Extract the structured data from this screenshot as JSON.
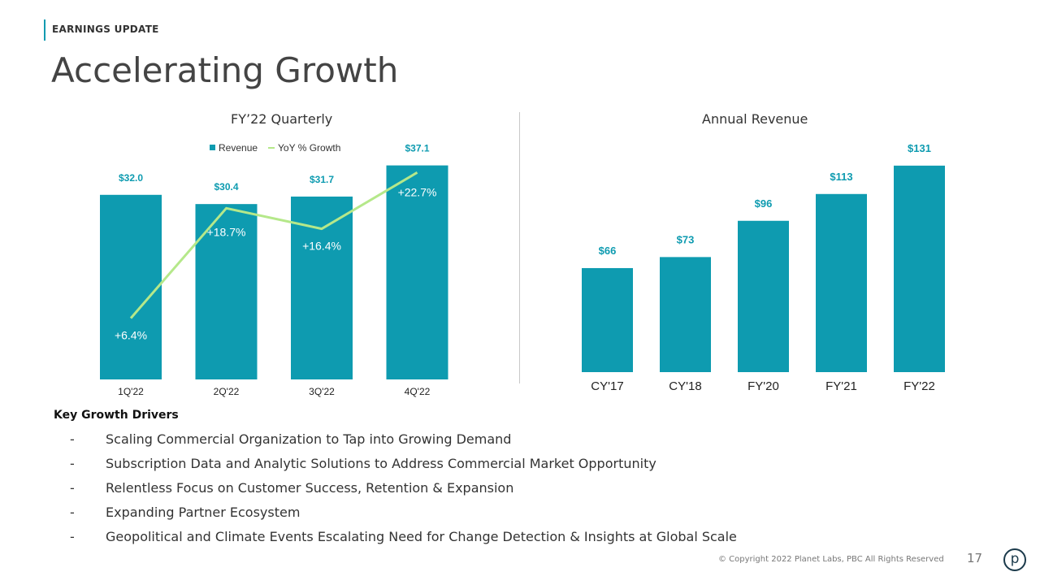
{
  "header": {
    "section_label": "EARNINGS UPDATE",
    "title": "Accelerating Growth"
  },
  "chart_data": [
    {
      "type": "bar",
      "title": "FY’22 Quarterly",
      "categories": [
        "1Q'22",
        "2Q'22",
        "3Q'22",
        "4Q'22"
      ],
      "series": [
        {
          "name": "Revenue",
          "type": "bar",
          "values": [
            32.0,
            30.4,
            31.7,
            37.1
          ],
          "labels": [
            "$32.0",
            "$30.4",
            "$31.7",
            "$37.1"
          ]
        },
        {
          "name": "YoY % Growth",
          "type": "line",
          "values": [
            6.4,
            18.7,
            16.4,
            22.7
          ],
          "labels": [
            "+6.4%",
            "+18.7%",
            "+16.4%",
            "+22.7%"
          ]
        }
      ],
      "legend_position": "top-center",
      "colors": {
        "bar": "#0e9bb0",
        "line": "#b5e88a"
      },
      "grid": false
    },
    {
      "type": "bar",
      "title": "Annual Revenue",
      "categories": [
        "CY'17",
        "CY'18",
        "FY'20",
        "FY'21",
        "FY'22"
      ],
      "series": [
        {
          "values": [
            66,
            73,
            96,
            113,
            131
          ],
          "labels": [
            "$66",
            "$73",
            "$96",
            "$113",
            "$131"
          ]
        }
      ],
      "colors": {
        "bar": "#0e9bb0"
      },
      "grid": false
    }
  ],
  "drivers": {
    "heading": "Key Growth Drivers",
    "bullet": "-",
    "items": [
      "Scaling Commercial Organization to Tap into Growing Demand",
      "Subscription Data and Analytic Solutions to Address Commercial Market Opportunity",
      "Relentless Focus on Customer Success, Retention & Expansion",
      "Expanding Partner Ecosystem",
      "Geopolitical and Climate Events Escalating Need for Change Detection & Insights at Global Scale"
    ]
  },
  "footer": {
    "copyright": "© Copyright 2022 Planet Labs, PBC All Rights Reserved",
    "page_number": "17",
    "logo_letter": "p"
  }
}
